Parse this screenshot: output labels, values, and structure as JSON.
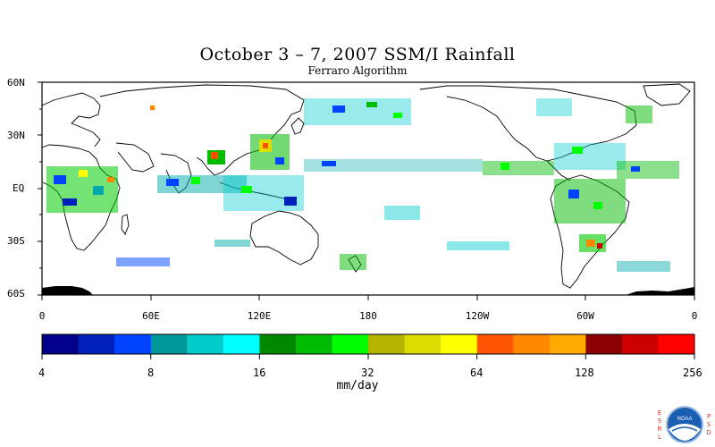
{
  "title": "October 3 – 7, 2007 SSM/I Rainfall",
  "subtitle": "Ferraro Algorithm",
  "lat_labels": [
    "60N",
    "30N",
    "EQ",
    "30S",
    "60S"
  ],
  "lon_labels": [
    "0",
    "60E",
    "120E",
    "180",
    "120W",
    "60W",
    "0"
  ],
  "colorbar": {
    "ticks": [
      "4",
      "8",
      "16",
      "32",
      "64",
      "128",
      "256"
    ],
    "units": "mm/day",
    "colors": [
      "#00008b",
      "#0022bb",
      "#0044ff",
      "#009999",
      "#00cccc",
      "#00ffff",
      "#008800",
      "#00bb00",
      "#00ff00",
      "#b3b300",
      "#dddd00",
      "#ffff00",
      "#ff5500",
      "#ff8800",
      "#ffaa00",
      "#8b0000",
      "#cc0000",
      "#ff0000"
    ]
  },
  "logo": {
    "text": "NOAA",
    "left_letters": [
      "E",
      "S",
      "R",
      "L"
    ],
    "right_letters": [
      "P",
      "S",
      "D"
    ]
  }
}
